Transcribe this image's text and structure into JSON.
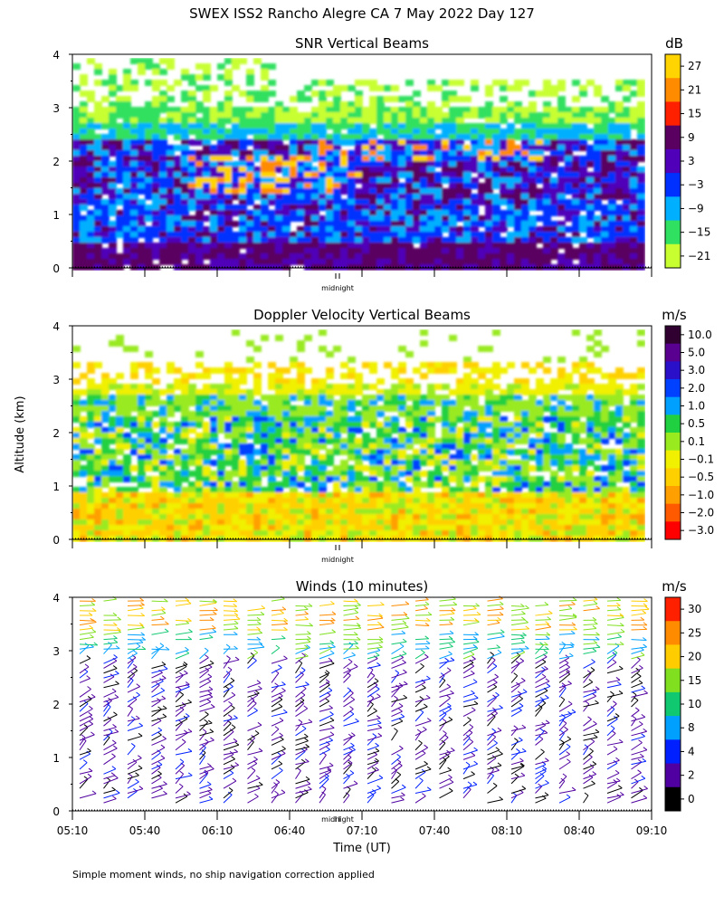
{
  "title": "SWEX ISS2 Rancho Alegre CA   7 May 2022 Day 127",
  "y_axis_label": "Altitude (km)",
  "x_axis_label": "Time (UT)",
  "midnight_label": "midnight",
  "footnote": "Simple moment winds, no ship navigation correction applied",
  "chart_data": [
    {
      "type": "heatmap",
      "title": "SNR Vertical Beams",
      "colorbar_unit": "dB",
      "colorbar_ticks": [
        "27",
        "21",
        "15",
        "9",
        "3",
        "−3",
        "−9",
        "−15",
        "−21"
      ],
      "colorbar_colors": [
        "#ffd400",
        "#ff8c00",
        "#ff2000",
        "#5a0060",
        "#5000b8",
        "#0030ff",
        "#00b0ff",
        "#30e060",
        "#c8ff30"
      ],
      "yticks": [
        "0",
        "1",
        "2",
        "3",
        "4"
      ],
      "ylim": [
        0,
        4
      ],
      "xlim": [
        "05:10",
        "09:10"
      ]
    },
    {
      "type": "heatmap",
      "title": "Doppler Velocity Vertical Beams",
      "colorbar_unit": "m/s",
      "colorbar_ticks": [
        "10.0",
        "5.0",
        "3.0",
        "2.0",
        "1.0",
        "0.5",
        "0.1",
        "−0.1",
        "−0.5",
        "−1.0",
        "−2.0",
        "−3.0"
      ],
      "colorbar_colors": [
        "#300030",
        "#5a0090",
        "#2a10c8",
        "#0040ff",
        "#00a0ff",
        "#20d040",
        "#9aea20",
        "#f0f000",
        "#ffd000",
        "#ffa000",
        "#ff5a00",
        "#ff0000"
      ],
      "yticks": [
        "0",
        "1",
        "2",
        "3",
        "4"
      ],
      "ylim": [
        0,
        4
      ],
      "xlim": [
        "05:10",
        "09:10"
      ]
    },
    {
      "type": "scatter",
      "title": "Winds (10 minutes)",
      "colorbar_unit": "m/s",
      "colorbar_ticks": [
        "30",
        "25",
        "20",
        "15",
        "10",
        "8",
        "4",
        "2",
        "0"
      ],
      "colorbar_colors": [
        "#ff2000",
        "#ff8c00",
        "#ffcc00",
        "#80e020",
        "#10c870",
        "#00a0ff",
        "#0020ff",
        "#5000a0",
        "#000000"
      ],
      "yticks": [
        "0",
        "1",
        "2",
        "3",
        "4"
      ],
      "ylim": [
        0,
        4
      ],
      "xticks": [
        "05:10",
        "05:40",
        "06:10",
        "06:40",
        "07:10",
        "07:40",
        "08:10",
        "08:40",
        "09:10"
      ],
      "xlim": [
        "05:10",
        "09:10"
      ]
    }
  ]
}
